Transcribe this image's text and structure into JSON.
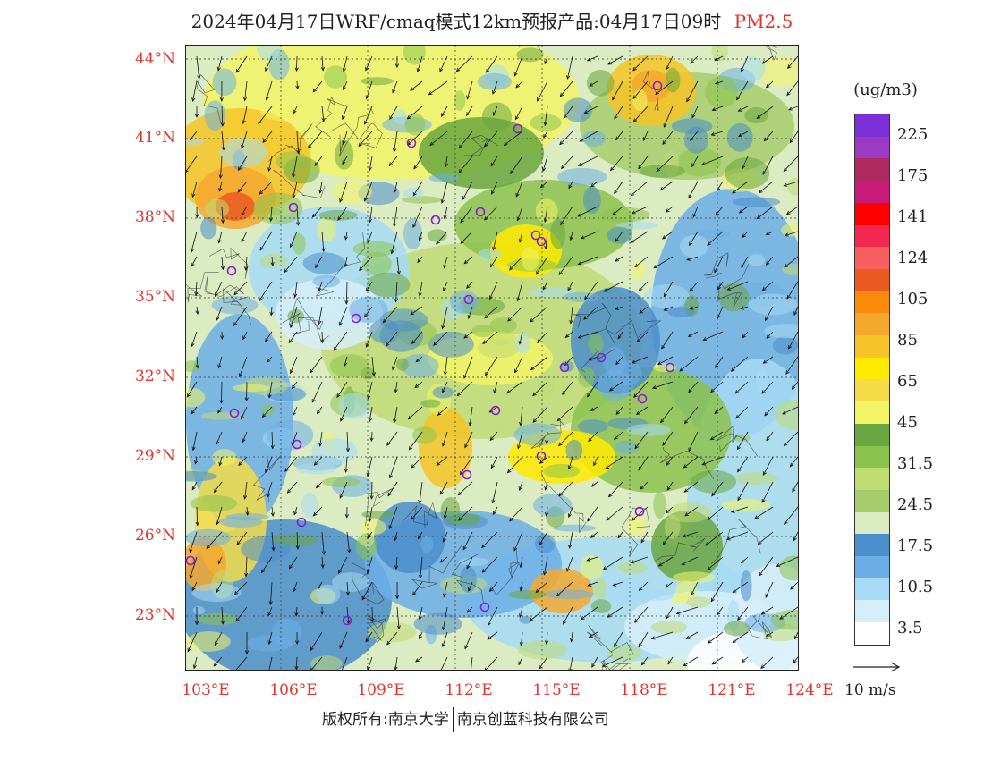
{
  "title": {
    "main": "2024年04月17日WRF/cmaq模式12km预报产品:04月17日09时",
    "pollutant": "PM2.5"
  },
  "map": {
    "lat_labels": [
      "44°N",
      "41°N",
      "38°N",
      "35°N",
      "32°N",
      "29°N",
      "26°N",
      "23°N"
    ],
    "lon_labels": [
      "103°E",
      "106°E",
      "109°E",
      "112°E",
      "115°E",
      "118°E",
      "121°E",
      "124°E"
    ],
    "extent": {
      "lon": [
        103,
        124
      ],
      "lat": [
        21,
        44.5
      ]
    }
  },
  "legend": {
    "unit": "(ug/m3)",
    "labels": [
      "225",
      "175",
      "141",
      "124",
      "105",
      "85",
      "65",
      "45",
      "31.5",
      "24.5",
      "17.5",
      "10.5",
      "3.5"
    ],
    "colors": [
      "#7b2fd6",
      "#9b3bc4",
      "#ad2a5e",
      "#c81a7a",
      "#ff0000",
      "#f22850",
      "#f86060",
      "#ea5a22",
      "#f98a0a",
      "#f4a82e",
      "#f6c426",
      "#ffea00",
      "#f3dc48",
      "#f2f466",
      "#6aa640",
      "#8cc24e",
      "#bfdb74",
      "#a6cc6c",
      "#dbebc2",
      "#4a8ecb",
      "#6baee6",
      "#a6daf5",
      "#d6eef9",
      "#ffffff"
    ]
  },
  "wind": {
    "reference_label": "10 m/s"
  },
  "footer": {
    "copyright_left": "版权所有:南京大学",
    "copyright_right": "南京创蓝科技有限公司"
  }
}
